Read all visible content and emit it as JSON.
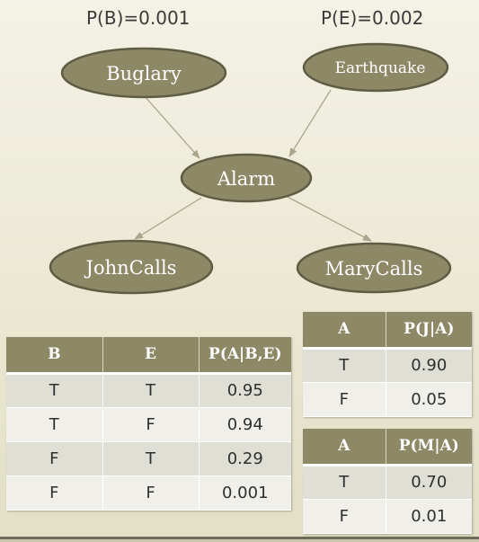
{
  "priors": {
    "b": "P(B)=0.001",
    "e": "P(E)=0.002"
  },
  "nodes": {
    "burglary": "Buglary",
    "earthquake": "Earthquake",
    "alarm": "Alarm",
    "johncalls": "JohnCalls",
    "marycalls": "MaryCalls"
  },
  "edges": [
    {
      "from": "Buglary",
      "to": "Alarm"
    },
    {
      "from": "Earthquake",
      "to": "Alarm"
    },
    {
      "from": "Alarm",
      "to": "JohnCalls"
    },
    {
      "from": "Alarm",
      "to": "MaryCalls"
    }
  ],
  "colors": {
    "node_fill": "#8d8866",
    "header": "#8d8866",
    "edge": "#a9a68c"
  },
  "alarm_cpt": {
    "headers": [
      "B",
      "E",
      "P(A|B,E)"
    ],
    "rows": [
      [
        "T",
        "T",
        "0.95"
      ],
      [
        "T",
        "F",
        "0.94"
      ],
      [
        "F",
        "T",
        "0.29"
      ],
      [
        "F",
        "F",
        "0.001"
      ]
    ]
  },
  "john_cpt": {
    "headers": [
      "A",
      "P(J|A)"
    ],
    "rows": [
      [
        "T",
        "0.90"
      ],
      [
        "F",
        "0.05"
      ]
    ]
  },
  "mary_cpt": {
    "headers": [
      "A",
      "P(M|A)"
    ],
    "rows": [
      [
        "T",
        "0.70"
      ],
      [
        "F",
        "0.01"
      ]
    ]
  }
}
